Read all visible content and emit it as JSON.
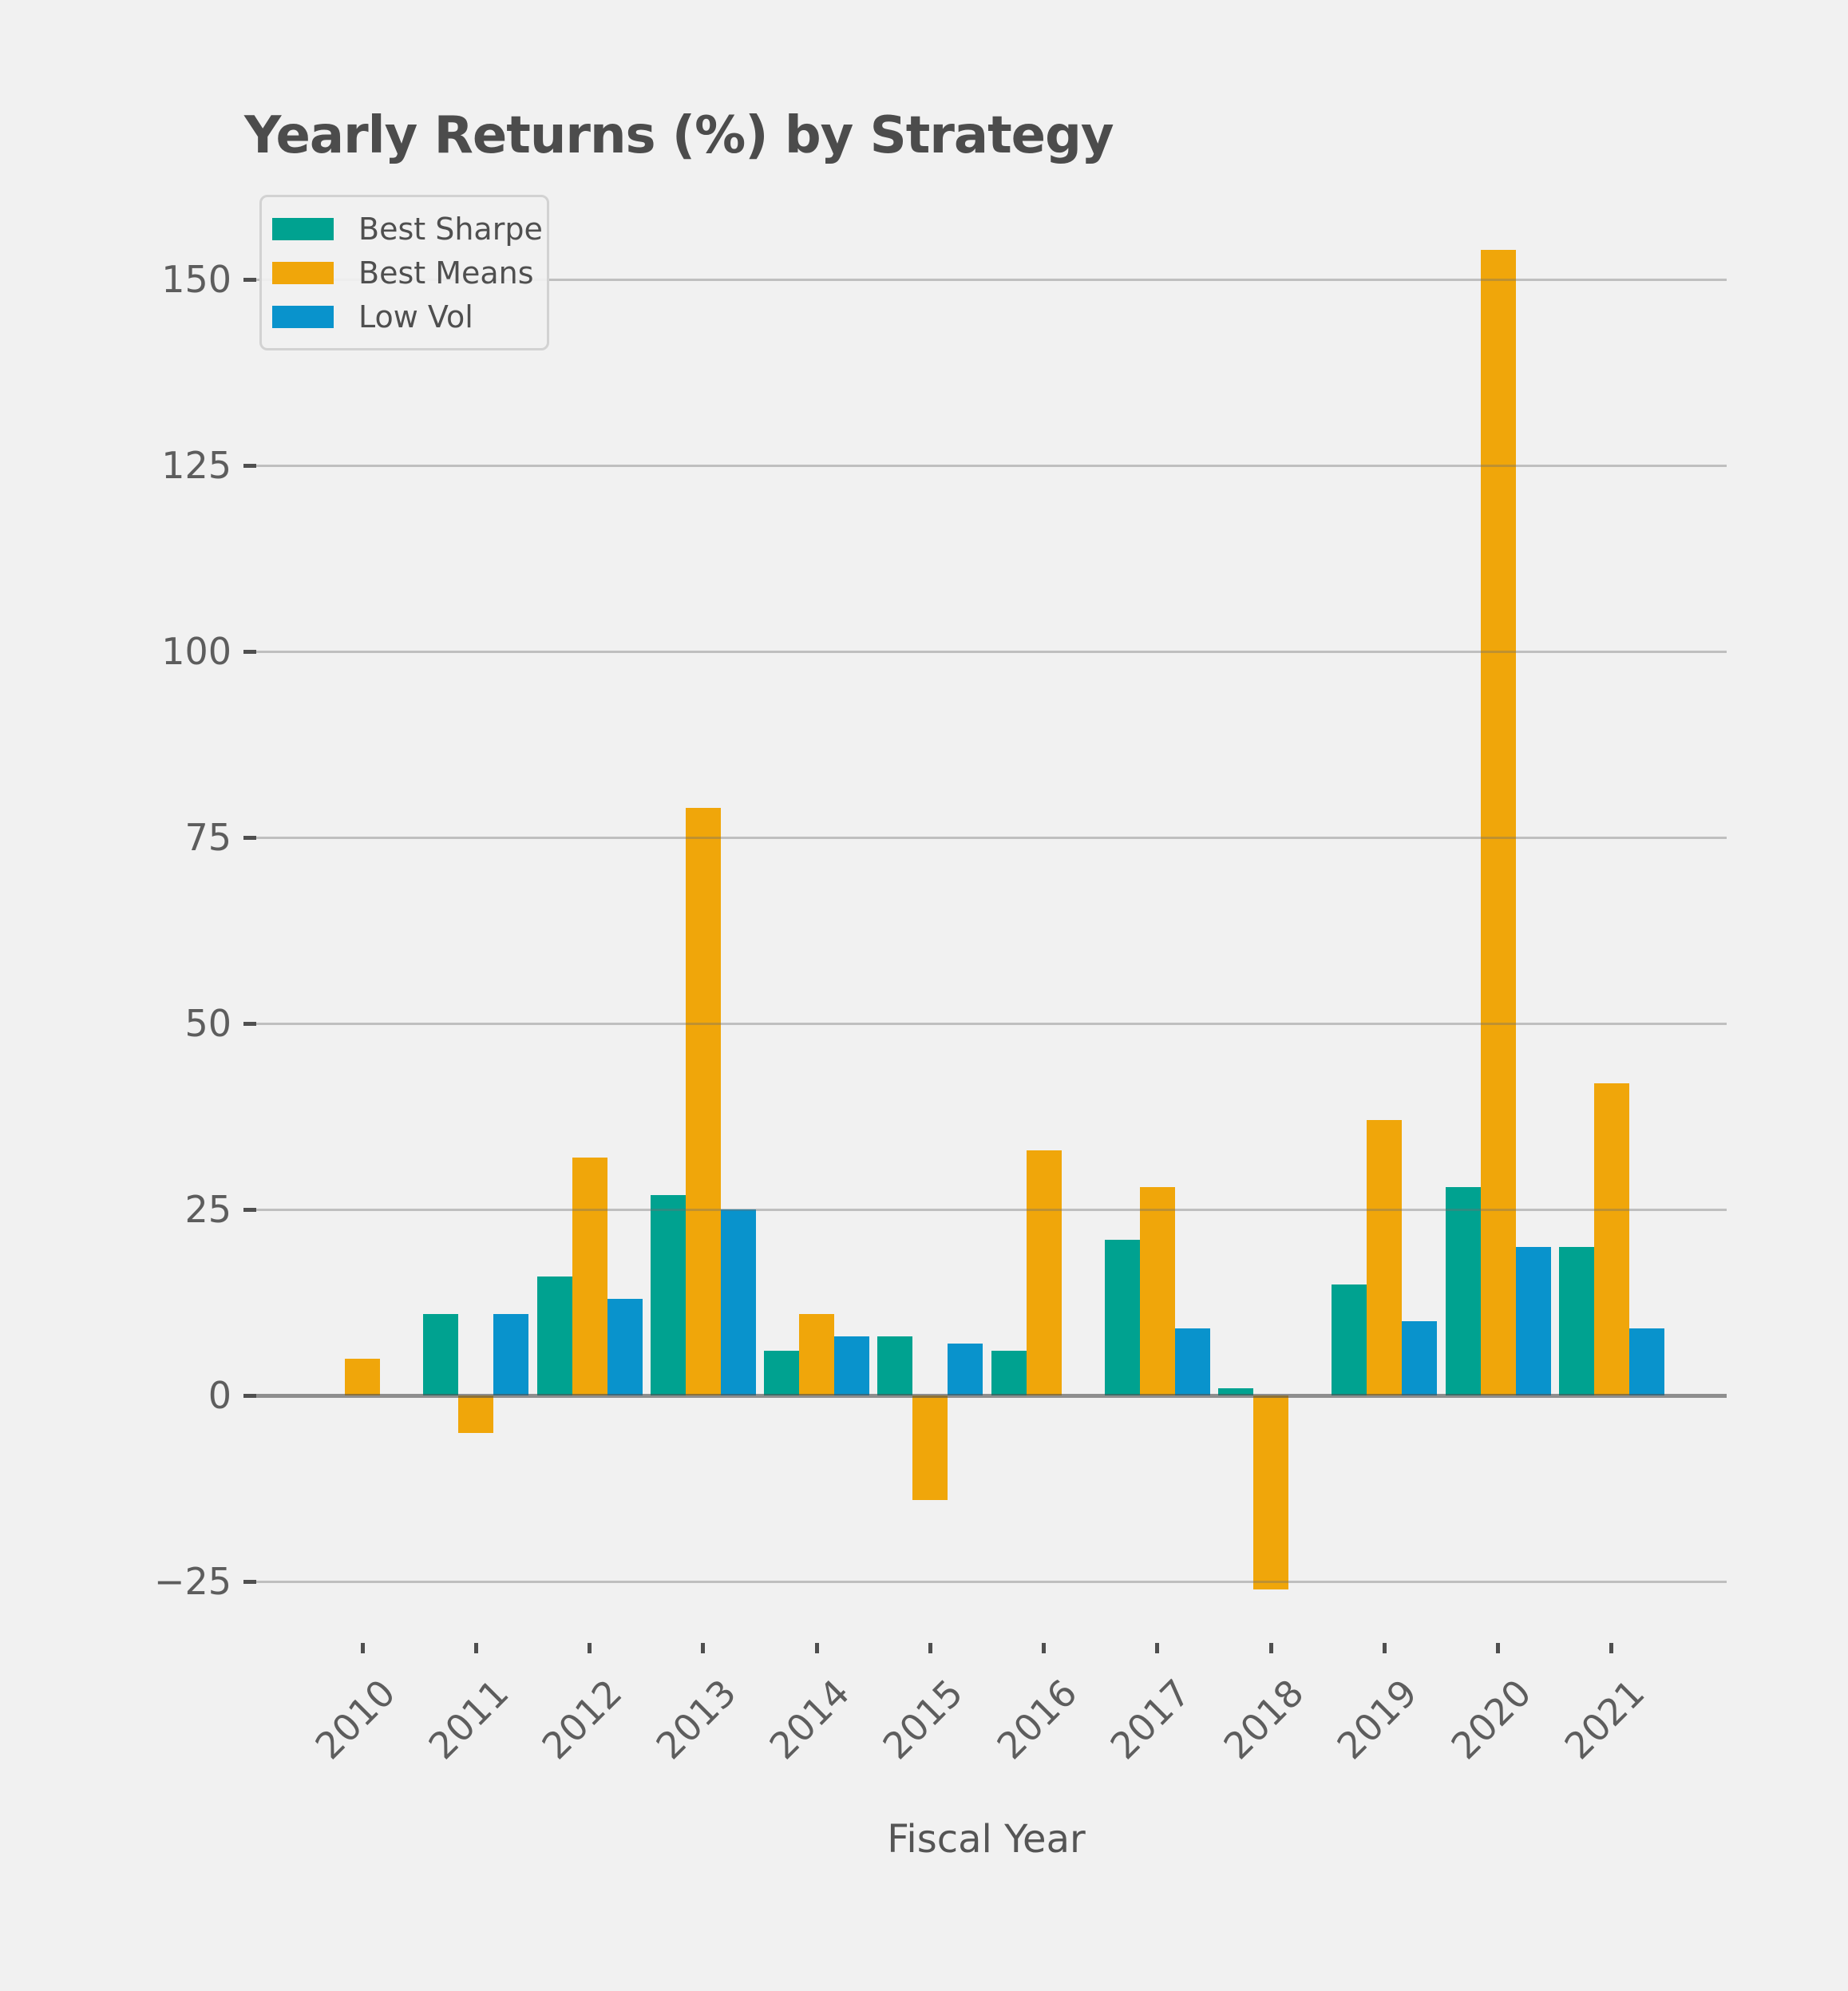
{
  "title": "Yearly Returns (%) by Strategy",
  "colors": {
    "background": "#f1f1f1",
    "grid": "#c6c6c6",
    "zero_line": "#8e8e8e",
    "tick_mark": "#4f4f4f",
    "title_text": "#4c4c4c",
    "tick_label_text": "#5d5d5d",
    "axis_label_text": "#555555",
    "legend_border": "#d2d2d2",
    "series_teal": "#00a290",
    "series_orange": "#f0a60a",
    "series_blue": "#0993cc"
  },
  "chart_data": {
    "type": "bar",
    "title": "Yearly Returns (%) by Strategy",
    "xlabel": "Fiscal Year",
    "ylabel": "",
    "categories": [
      "2010",
      "2011",
      "2012",
      "2013",
      "2014",
      "2015",
      "2016",
      "2017",
      "2018",
      "2019",
      "2020",
      "2021"
    ],
    "series": [
      {
        "name": "Best Sharpe",
        "color": "#00a290",
        "values": [
          null,
          11,
          16,
          27,
          6,
          8,
          6,
          21,
          1,
          15,
          28,
          20
        ]
      },
      {
        "name": "Best Means",
        "color": "#f0a60a",
        "values": [
          5,
          -5,
          32,
          79,
          11,
          -14,
          33,
          28,
          -26,
          37,
          154,
          42
        ]
      },
      {
        "name": "Low Vol",
        "color": "#0993cc",
        "values": [
          null,
          11,
          13,
          25,
          8,
          7,
          null,
          9,
          null,
          10,
          20,
          9
        ]
      }
    ],
    "yticks": [
      150,
      125,
      100,
      75,
      50,
      25,
      0,
      -25
    ],
    "ylim": [
      -33,
      164.5
    ],
    "grid": "horizontal",
    "legend_position": "upper left"
  }
}
